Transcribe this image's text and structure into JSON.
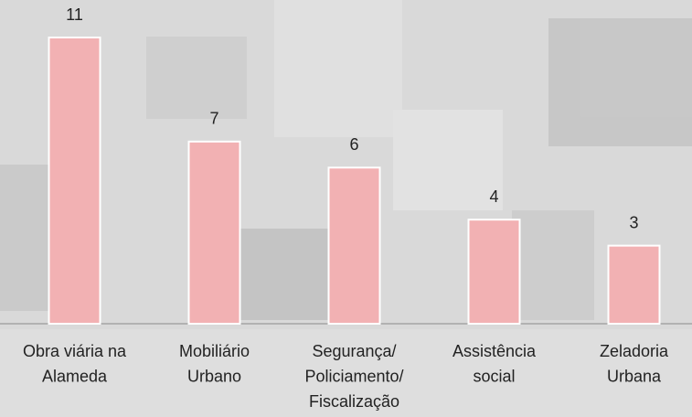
{
  "chart_data": {
    "type": "bar",
    "categories": [
      [
        "Obra viária na",
        "Alameda"
      ],
      [
        "Mobiliário",
        "Urbano"
      ],
      [
        "Segurança/",
        "Policiamento/",
        "Fiscalização"
      ],
      [
        "Assistência",
        "social"
      ],
      [
        "Zeladoria",
        "Urbana"
      ]
    ],
    "values": [
      11,
      7,
      6,
      4,
      3
    ],
    "color": "#f2b1b3"
  }
}
